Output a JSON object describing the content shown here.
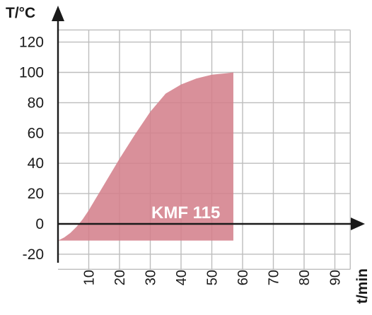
{
  "chart_data": {
    "type": "area",
    "xlabel": "t/min",
    "ylabel": "T/°C",
    "xlim": [
      0,
      95
    ],
    "ylim": [
      -20,
      128
    ],
    "x_ticks": [
      10,
      20,
      30,
      40,
      50,
      60,
      70,
      80,
      90
    ],
    "y_ticks": [
      -20,
      0,
      20,
      40,
      60,
      80,
      100,
      120
    ],
    "grid": true,
    "colors": {
      "area": "#d4818c",
      "grid": "#bdbdbd",
      "axis": "#1a1a1a"
    },
    "series": [
      {
        "name": "KMF 115",
        "x": [
          0,
          2,
          4,
          6,
          8,
          10,
          15,
          20,
          25,
          30,
          35,
          40,
          45,
          50,
          55,
          57
        ],
        "y": [
          -11,
          -9,
          -6,
          -2,
          3,
          9,
          26,
          43,
          59,
          74,
          86,
          92,
          96,
          98.5,
          99.5,
          100
        ],
        "baseline": -11
      }
    ]
  }
}
